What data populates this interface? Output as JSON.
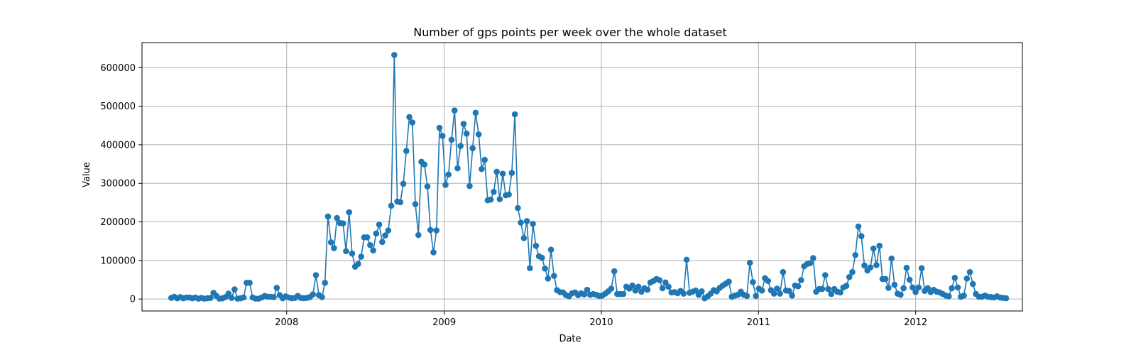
{
  "chart_data": {
    "type": "line",
    "title": "Number of gps points per week over the whole dataset",
    "xlabel": "Date",
    "ylabel": "Value",
    "xlim": [
      "2007-01-30",
      "2012-09-05"
    ],
    "ylim": [
      -31000,
      665000
    ],
    "x_ticks": [
      "2008-01-01",
      "2009-01-01",
      "2010-01-01",
      "2011-01-01",
      "2012-01-01"
    ],
    "x_tick_labels": [
      "2008",
      "2009",
      "2010",
      "2011",
      "2012"
    ],
    "y_ticks": [
      0,
      100000,
      200000,
      300000,
      400000,
      500000,
      600000
    ],
    "y_tick_labels": [
      "0",
      "100000",
      "200000",
      "300000",
      "400000",
      "500000",
      "600000"
    ],
    "grid": true,
    "marker": "circle",
    "colors": {
      "series": "#1f77b4",
      "grid": "#b0b0b0",
      "axes": "#000000"
    },
    "start_date": "2007-04-08",
    "interval_days": 7,
    "values": [
      3000,
      6000,
      2000,
      5000,
      2000,
      4000,
      4000,
      2000,
      4000,
      1000,
      3000,
      1000,
      2000,
      3000,
      16000,
      8000,
      1000,
      2000,
      5000,
      14000,
      3000,
      25000,
      1000,
      2000,
      4000,
      42000,
      42000,
      4000,
      1000,
      1000,
      4000,
      8000,
      6000,
      6000,
      5000,
      29000,
      10000,
      2000,
      7000,
      4000,
      2000,
      3000,
      8000,
      3000,
      2000,
      3000,
      5000,
      12000,
      62000,
      10000,
      5000,
      42000,
      214000,
      147000,
      132000,
      210000,
      197000,
      196000,
      124000,
      225000,
      118000,
      84000,
      91000,
      110000,
      160000,
      160000,
      140000,
      126000,
      170000,
      193000,
      148000,
      165000,
      178000,
      242000,
      633000,
      253000,
      251000,
      299000,
      384000,
      472000,
      458000,
      246000,
      166000,
      356000,
      349000,
      292000,
      179000,
      121000,
      178000,
      444000,
      423000,
      296000,
      323000,
      413000,
      489000,
      339000,
      397000,
      454000,
      429000,
      293000,
      391000,
      483000,
      427000,
      337000,
      361000,
      256000,
      258000,
      278000,
      330000,
      259000,
      325000,
      269000,
      271000,
      327000,
      479000,
      236000,
      198000,
      158000,
      202000,
      80000,
      195000,
      138000,
      111000,
      107000,
      79000,
      53000,
      128000,
      60000,
      23000,
      18000,
      17000,
      10000,
      7000,
      15000,
      17000,
      10000,
      15000,
      12000,
      24000,
      11000,
      13000,
      11000,
      8000,
      9000,
      14000,
      20000,
      27000,
      72000,
      13000,
      13000,
      13000,
      32000,
      27000,
      35000,
      22000,
      32000,
      19000,
      28000,
      24000,
      43000,
      47000,
      52000,
      49000,
      28000,
      43000,
      32000,
      17000,
      18000,
      15000,
      21000,
      14000,
      102000,
      16000,
      19000,
      22000,
      11000,
      20000,
      2000,
      7000,
      14000,
      23000,
      20000,
      29000,
      35000,
      40000,
      45000,
      6000,
      9000,
      11000,
      19000,
      11000,
      8000,
      94000,
      44000,
      8000,
      27000,
      22000,
      54000,
      47000,
      23000,
      14000,
      27000,
      14000,
      70000,
      22000,
      21000,
      9000,
      35000,
      33000,
      49000,
      85000,
      91000,
      93000,
      106000,
      19000,
      26000,
      26000,
      62000,
      26000,
      13000,
      26000,
      19000,
      17000,
      30000,
      34000,
      57000,
      70000,
      114000,
      188000,
      163000,
      87000,
      74000,
      82000,
      131000,
      88000,
      138000,
      52000,
      52000,
      29000,
      105000,
      37000,
      14000,
      11000,
      28000,
      81000,
      50000,
      30000,
      18000,
      30000,
      80000,
      21000,
      28000,
      18000,
      24000,
      19000,
      17000,
      13000,
      9000,
      7000,
      28000,
      55000,
      30000,
      6000,
      9000,
      53000,
      70000,
      39000,
      13000,
      6000,
      6000,
      9000,
      6000,
      5000,
      4000,
      7000,
      4000,
      3000,
      2000
    ]
  }
}
